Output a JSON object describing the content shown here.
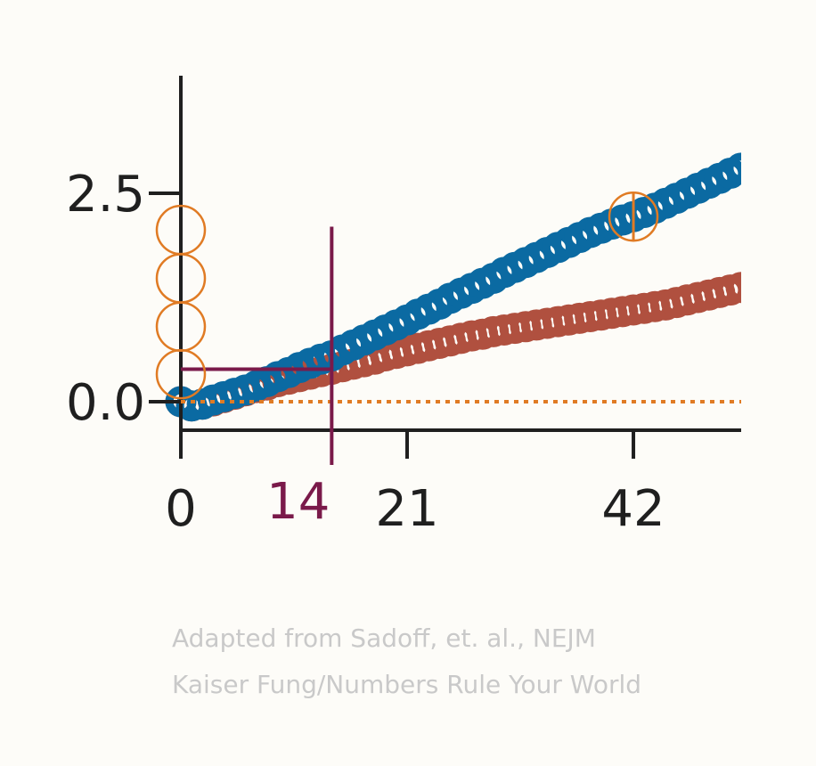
{
  "chart_data": {
    "type": "scatter",
    "title": "",
    "xlabel": "",
    "ylabel": "",
    "xlim": [
      0,
      52
    ],
    "ylim": [
      -0.5,
      3.4
    ],
    "x_ticks": [
      0,
      21,
      42
    ],
    "x_tick_labels": [
      "0",
      "21",
      "42"
    ],
    "y_ticks": [
      0.0,
      2.5
    ],
    "y_tick_labels": [
      "0.0",
      "2.5"
    ],
    "series": [
      {
        "color": "#0b6aa2",
        "x": [
          0,
          1,
          2,
          3,
          4,
          5,
          6,
          7,
          8,
          9,
          10,
          11,
          12,
          13,
          14,
          15,
          16,
          17,
          18,
          19,
          20,
          21,
          22,
          23,
          24,
          25,
          26,
          27,
          28,
          29,
          30,
          31,
          32,
          33,
          34,
          35,
          36,
          37,
          38,
          39,
          40,
          41,
          42,
          43,
          44,
          45,
          46,
          47,
          48,
          49,
          50,
          51,
          52
        ],
        "y": [
          0.0,
          -0.05,
          -0.03,
          0.02,
          0.06,
          0.1,
          0.14,
          0.19,
          0.24,
          0.3,
          0.35,
          0.41,
          0.46,
          0.51,
          0.55,
          0.62,
          0.68,
          0.74,
          0.8,
          0.86,
          0.92,
          0.98,
          1.05,
          1.11,
          1.17,
          1.24,
          1.3,
          1.36,
          1.42,
          1.48,
          1.55,
          1.61,
          1.67,
          1.73,
          1.79,
          1.85,
          1.91,
          1.97,
          2.03,
          2.08,
          2.13,
          2.18,
          2.22,
          2.27,
          2.32,
          2.38,
          2.44,
          2.5,
          2.56,
          2.62,
          2.68,
          2.74,
          2.8
        ]
      },
      {
        "color": "#b0503f",
        "x": [
          0,
          1,
          2,
          3,
          4,
          5,
          6,
          7,
          8,
          9,
          10,
          11,
          12,
          13,
          14,
          15,
          16,
          17,
          18,
          19,
          20,
          21,
          22,
          23,
          24,
          25,
          26,
          27,
          28,
          29,
          30,
          31,
          32,
          33,
          34,
          35,
          36,
          37,
          38,
          39,
          40,
          41,
          42,
          43,
          44,
          45,
          46,
          47,
          48,
          49,
          50,
          51,
          52
        ],
        "y": [
          0.0,
          -0.05,
          -0.03,
          0.01,
          0.05,
          0.09,
          0.13,
          0.17,
          0.2,
          0.24,
          0.27,
          0.3,
          0.33,
          0.36,
          0.39,
          0.42,
          0.45,
          0.48,
          0.51,
          0.55,
          0.58,
          0.61,
          0.64,
          0.67,
          0.7,
          0.73,
          0.76,
          0.79,
          0.81,
          0.84,
          0.86,
          0.88,
          0.9,
          0.92,
          0.94,
          0.96,
          0.98,
          1.0,
          1.02,
          1.04,
          1.06,
          1.08,
          1.1,
          1.12,
          1.14,
          1.16,
          1.19,
          1.22,
          1.25,
          1.28,
          1.31,
          1.34,
          1.37
        ]
      }
    ],
    "annotations": {
      "color_orange": "#e07b24",
      "color_maroon": "#7a1a4a",
      "baseline_y": 0.0,
      "vertical_marker": {
        "x": 14,
        "label": "14",
        "y_top": 2.1
      },
      "horizontal_marker": {
        "y": 0.39,
        "x_from": 0,
        "x_to": 14
      },
      "stacked_circles": {
        "x": 0,
        "y": [
          2.06,
          1.48,
          0.9,
          0.33
        ]
      },
      "circled_point": {
        "x": 42,
        "y": 2.22
      }
    }
  },
  "credit": {
    "line1": "Adapted from Sadoff, et. al., NEJM",
    "line2": "Kaiser Fung/Numbers Rule Your World"
  }
}
